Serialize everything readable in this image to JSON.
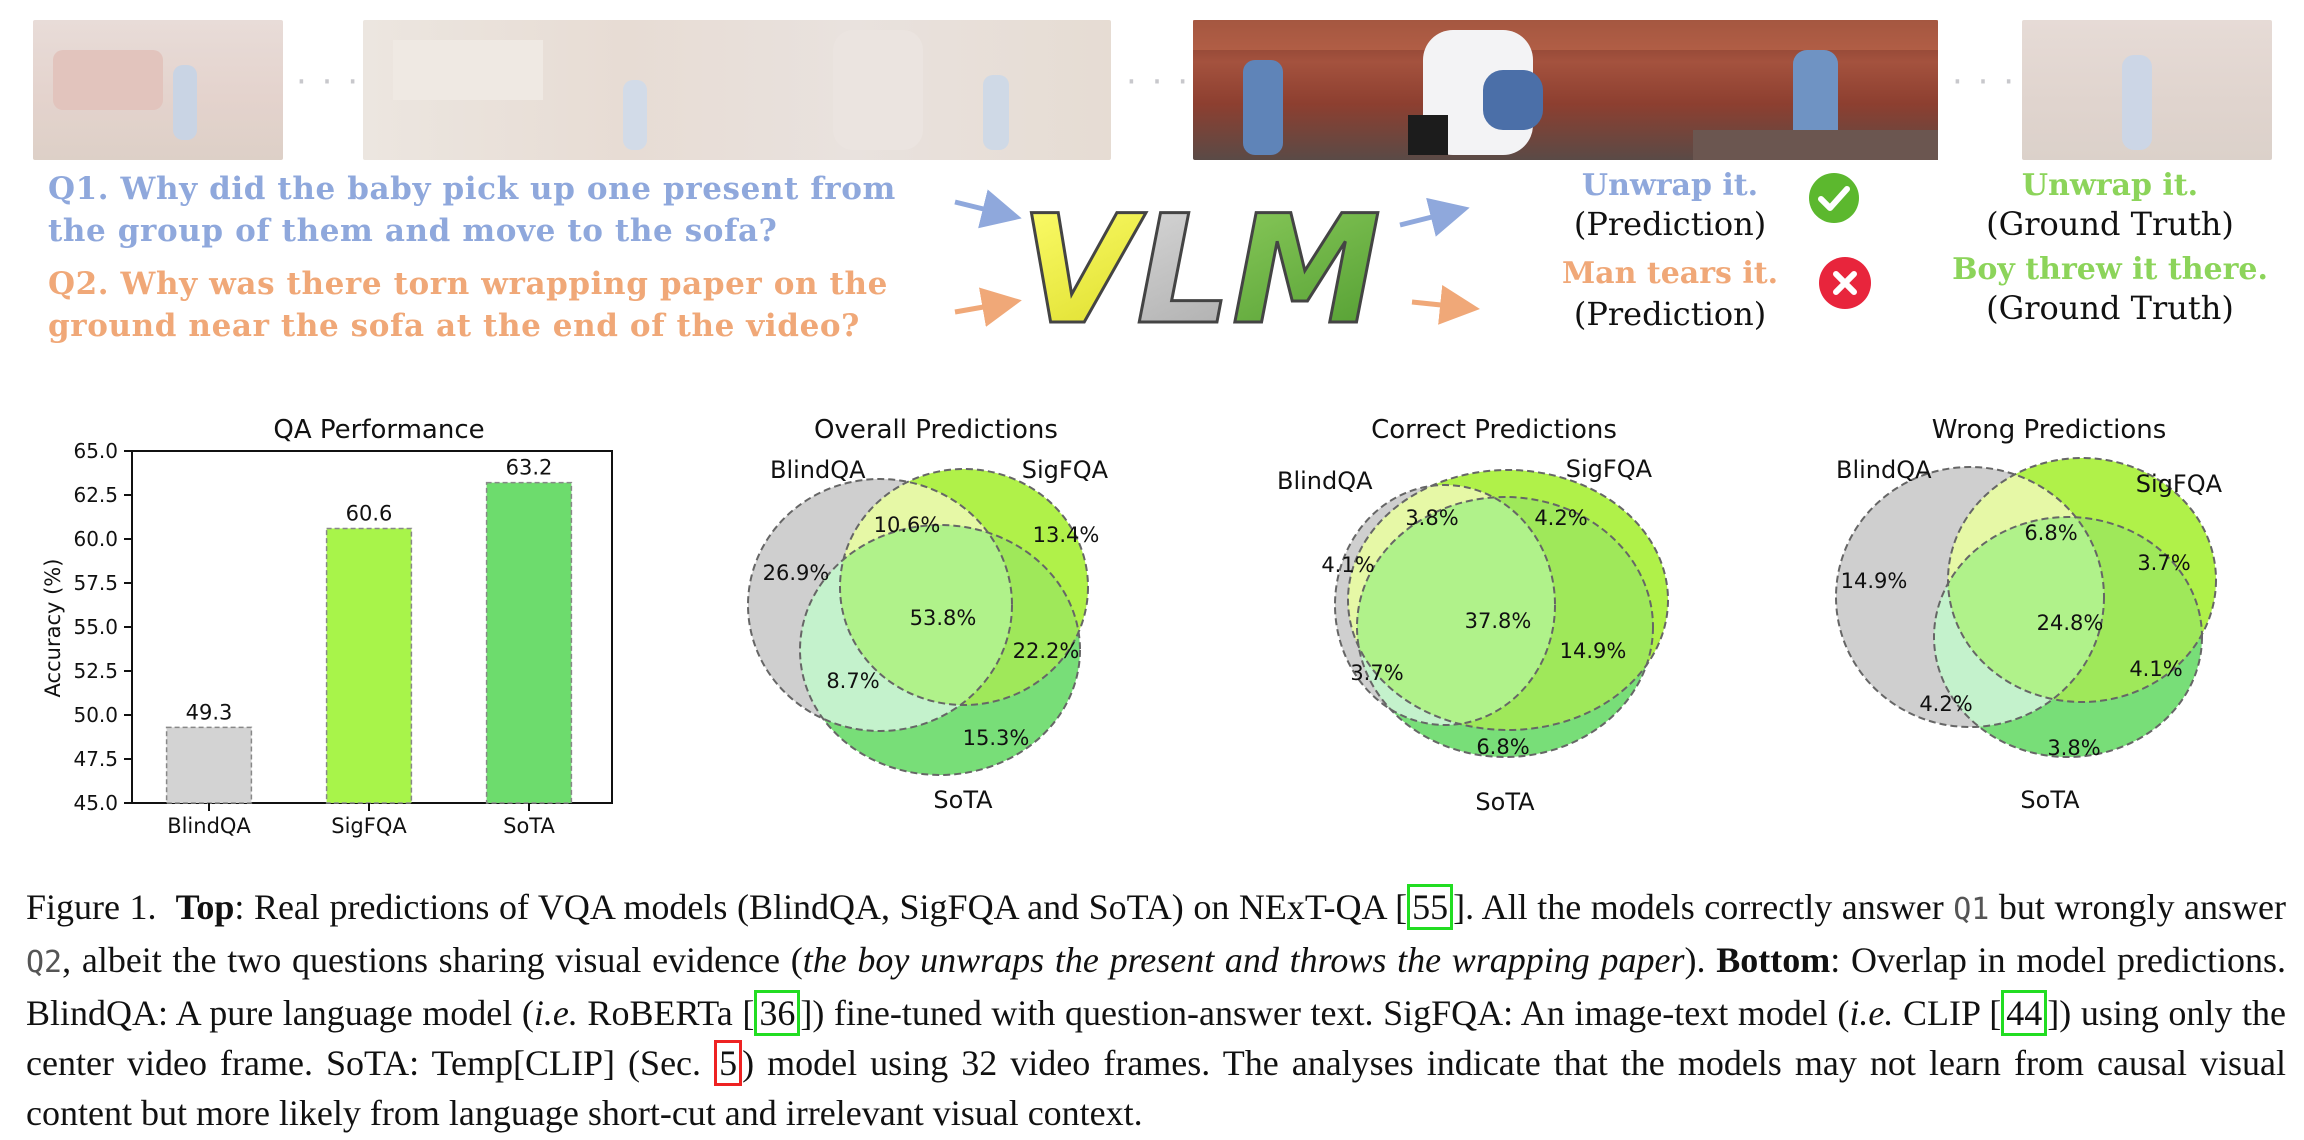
{
  "top": {
    "ellipsis": "· · ·",
    "q1": "Q1. Why did the baby pick up one present from the group of them and move to the sofa?",
    "q1_line1": "Q1. Why did the baby pick up one present from",
    "q1_line2": "the group of them and move to the sofa?",
    "q2_line1": "Q2. Why was there torn wrapping paper on the",
    "q2_line2": "ground near the sofa at the end of the video?",
    "model_label": "VLM",
    "q1_prediction": "Unwrap it.",
    "q1_prediction_tag": "(Prediction)",
    "q1_ground_truth": "Unwrap it.",
    "q1_ground_truth_tag": "(Ground Truth)",
    "q2_prediction": "Man tears it.",
    "q2_prediction_tag": "(Prediction)",
    "q2_ground_truth": "Boy threw it there.",
    "q2_ground_truth_tag": "(Ground Truth)",
    "colors": {
      "q1": "#8fa8dc",
      "q2": "#f0a878",
      "gt": "#8cd45a",
      "correct": "#5cb82e",
      "wrong": "#e8253c"
    }
  },
  "chart_data": [
    {
      "type": "bar",
      "title": "QA Performance",
      "categories": [
        "BlindQA",
        "SigFQA",
        "SoTA"
      ],
      "values": [
        49.3,
        60.6,
        63.2
      ],
      "ylabel": "Accuracy (%)",
      "xlabel": "",
      "ylim": [
        45.0,
        65.0
      ],
      "yticks": [
        "45.0",
        "47.5",
        "50.0",
        "52.5",
        "55.0",
        "57.5",
        "60.0",
        "62.5",
        "65.0"
      ],
      "colors": [
        "#d3d3d3",
        "#a8f44a",
        "#6ddc6d"
      ]
    },
    {
      "type": "venn3",
      "title": "Overall Predictions",
      "sets": [
        "BlindQA",
        "SigFQA",
        "SoTA"
      ],
      "regions": {
        "blind_only": "26.9%",
        "blind_sig": "10.6%",
        "sig_only": "13.4%",
        "all": "53.8%",
        "sig_sota": "22.2%",
        "blind_sota": "8.7%",
        "sota_only": "15.3%"
      }
    },
    {
      "type": "venn3",
      "title": "Correct Predictions",
      "sets": [
        "BlindQA",
        "SigFQA",
        "SoTA"
      ],
      "regions": {
        "blind_only": "4.1%",
        "blind_sig": "3.8%",
        "sig_only": "4.2%",
        "all": "37.8%",
        "sig_sota": "14.9%",
        "blind_sota": "3.7%",
        "sota_only": "6.8%"
      }
    },
    {
      "type": "venn3",
      "title": "Wrong Predictions",
      "sets": [
        "BlindQA",
        "SigFQA",
        "SoTA"
      ],
      "regions": {
        "blind_only": "14.9%",
        "blind_sig": "6.8%",
        "sig_only": "3.7%",
        "all": "24.8%",
        "sig_sota": "4.1%",
        "blind_sota": "4.2%",
        "sota_only": "3.8%"
      }
    }
  ],
  "caption": {
    "fig": "Figure 1.",
    "top_label": "Top",
    "t1": ": Real predictions of VQA models (BlindQA, SigFQA and SoTA) on NExT-QA [",
    "c55": "55",
    "t2": "]. All the models correctly answer ",
    "q1": "Q1",
    "t3": " but wrongly answer ",
    "q2": "Q2",
    "t4": ", albeit the two questions sharing visual evidence (",
    "italic1": "the boy unwraps the present and throws the wrapping paper",
    "t5": "). ",
    "bottom_label": "Bottom",
    "t6": ": Overlap in model predictions. BlindQA: A pure language model (",
    "ie1": "i.e.",
    "t7": " RoBERTa [",
    "c36": "36",
    "t8": "]) fine-tuned with question-answer text. SigFQA: An image-text model (",
    "ie2": "i.e.",
    "t9": " CLIP [",
    "c44": "44",
    "t10": "]) using only the center video frame. SoTA: Temp[CLIP] (Sec. ",
    "c5": "5",
    "t11": ") model using 32 video frames. The analyses indicate that the models may not learn from causal visual content but more likely from language short-cut and irrelevant visual context."
  }
}
